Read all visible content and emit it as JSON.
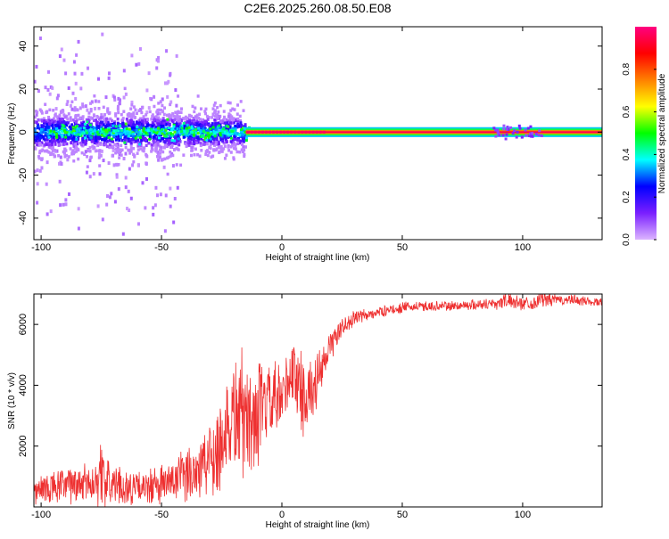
{
  "chart_data": [
    {
      "type": "heatmap",
      "title": "C2E6.2025.260.08.50.E08",
      "xlabel": "Height of straight line (km)",
      "ylabel": "Frequency (Hz)",
      "xlim": [
        -103,
        133
      ],
      "ylim": [
        -50,
        49
      ],
      "xticks": [
        -100,
        -50,
        0,
        50,
        100
      ],
      "yticks": [
        -40,
        -20,
        0,
        20,
        40
      ],
      "colorbar": {
        "label": "Normalized spectral amplitude",
        "range": [
          0,
          1
        ],
        "ticks": [
          "0.0",
          "0.2",
          "0.4",
          "0.6",
          "0.8"
        ],
        "colors": [
          "#dcb4ff",
          "#7a1fff",
          "#0000ff",
          "#00ffff",
          "#00ff00",
          "#ffff00",
          "#ff8000",
          "#ff0000",
          "#ff0080"
        ]
      },
      "series": [
        {
          "segment": "broad scatter",
          "x_range": [
            -103,
            -15
          ],
          "center_freq": 0,
          "half_width": 6,
          "amplitude": 0.3
        },
        {
          "segment": "narrow carrier",
          "x_range": [
            -15,
            133
          ],
          "center_freq": 0,
          "half_width": 1.5,
          "amplitude": 0.95
        }
      ]
    },
    {
      "type": "line",
      "xlabel": "Height of straight line (km)",
      "ylabel": "SNR (10 * v/v)",
      "xlim": [
        -103,
        133
      ],
      "ylim": [
        0,
        7000
      ],
      "xticks": [
        -100,
        -50,
        0,
        50,
        100
      ],
      "yticks": [
        2000,
        4000,
        6000
      ],
      "color": "#ee3030",
      "envelope": {
        "x": [
          -103,
          -90,
          -80,
          -75,
          -70,
          -60,
          -50,
          -40,
          -30,
          -25,
          -20,
          -17,
          -15,
          -10,
          -5,
          0,
          3,
          5,
          8,
          10,
          12,
          15,
          18,
          20,
          25,
          30,
          35,
          40,
          50,
          60,
          70,
          80,
          90,
          93,
          100,
          105,
          108,
          110,
          120,
          130,
          133
        ],
        "mean": [
          500,
          700,
          800,
          1000,
          700,
          600,
          700,
          1000,
          1600,
          2200,
          3000,
          3200,
          2800,
          3000,
          3400,
          3400,
          4300,
          4400,
          3800,
          3600,
          3800,
          4200,
          4700,
          5300,
          5900,
          6200,
          6300,
          6400,
          6550,
          6600,
          6600,
          6650,
          6700,
          6800,
          6700,
          6700,
          6900,
          6800,
          6800,
          6750,
          6700
        ],
        "spread": [
          600,
          700,
          800,
          1200,
          800,
          600,
          800,
          1000,
          1600,
          2000,
          2400,
          2600,
          2200,
          2000,
          1600,
          1400,
          1400,
          1600,
          1600,
          1400,
          1200,
          1000,
          800,
          600,
          400,
          300,
          250,
          200,
          200,
          200,
          200,
          200,
          250,
          300,
          250,
          250,
          400,
          250,
          200,
          200,
          200
        ]
      }
    }
  ]
}
